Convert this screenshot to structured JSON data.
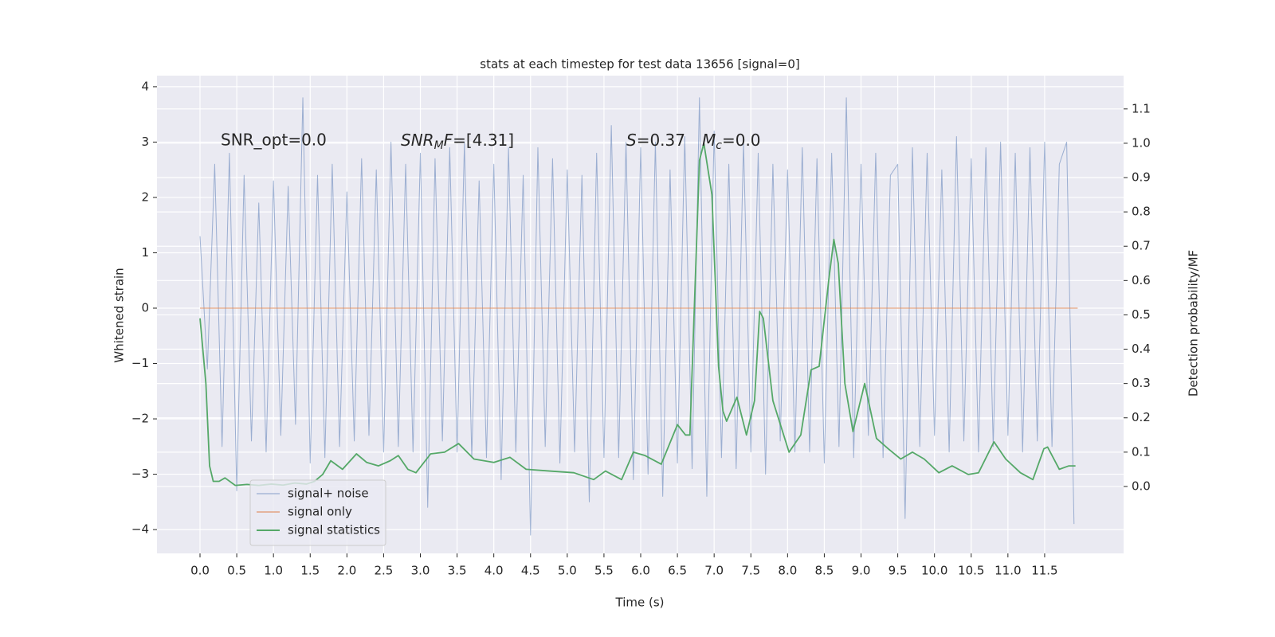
{
  "chart_data": {
    "type": "line",
    "title": "stats at each timestep for test data 13656 [signal=0]",
    "xlabel": "Time (s)",
    "ylabel": "Whitened strain",
    "y2label": "Detection probability/MF",
    "annotations": [
      "SNR_opt=0.0",
      [
        "SNR",
        "M",
        "F",
        "=[4.31]"
      ],
      [
        "S",
        "=0.37"
      ],
      [
        "M",
        "c",
        "=0.0"
      ]
    ],
    "xlim": [
      -0.586,
      12.575
    ],
    "ylim": [
      -4.43,
      4.2
    ],
    "y2lim": [
      -0.195,
      1.197
    ],
    "xticks": [
      {
        "value": 0,
        "label": "0.0"
      },
      0.5,
      {
        "value": 1,
        "label": "1.0"
      },
      1.5,
      {
        "value": 2,
        "label": "2.0"
      },
      2.5,
      {
        "value": 3,
        "label": "3.0"
      },
      3.5,
      {
        "value": 4,
        "label": "4.0"
      },
      4.5,
      {
        "value": 5,
        "label": "5.0"
      },
      5.5,
      {
        "value": 6,
        "label": "6.0"
      },
      6.5,
      {
        "value": 7,
        "label": "7.0"
      },
      7.5,
      {
        "value": 8,
        "label": "8.0"
      },
      8.5,
      {
        "value": 9,
        "label": "9.0"
      },
      9.5,
      {
        "value": 10,
        "label": "10.0"
      },
      10.5,
      {
        "value": 11,
        "label": "11.0"
      },
      11.5
    ],
    "yticks": [
      {
        "value": -4,
        "label": "−4"
      },
      {
        "value": -3,
        "label": "−3"
      },
      {
        "value": -2,
        "label": "−2"
      },
      {
        "value": -1,
        "label": "−1"
      },
      0,
      1,
      2,
      3,
      4
    ],
    "y2ticks": [
      {
        "value": 0,
        "label": "0.0"
      },
      0.1,
      0.2,
      0.3,
      0.4,
      0.5,
      0.6,
      0.7,
      0.8,
      0.9,
      {
        "value": 1,
        "label": "1.0"
      },
      1.1
    ],
    "grid": true,
    "legend": "lower left",
    "series": [
      {
        "name": "signal+ noise",
        "color": "#4c72b0",
        "x": [
          0.0,
          0.1,
          0.2,
          0.3,
          0.4,
          0.5,
          0.6,
          0.7,
          0.8,
          0.9,
          1.0,
          1.1,
          1.2,
          1.3,
          1.4,
          1.5,
          1.6,
          1.7,
          1.8,
          1.9,
          2.0,
          2.1,
          2.2,
          2.3,
          2.4,
          2.5,
          2.6,
          2.7,
          2.8,
          2.9,
          3.0,
          3.1,
          3.2,
          3.3,
          3.4,
          3.5,
          3.6,
          3.7,
          3.8,
          3.9,
          4.0,
          4.1,
          4.2,
          4.3,
          4.4,
          4.5,
          4.6,
          4.7,
          4.8,
          4.9,
          5.0,
          5.1,
          5.2,
          5.3,
          5.4,
          5.5,
          5.6,
          5.7,
          5.8,
          5.9,
          6.0,
          6.1,
          6.2,
          6.3,
          6.4,
          6.5,
          6.6,
          6.7,
          6.8,
          6.9,
          7.0,
          7.1,
          7.2,
          7.3,
          7.4,
          7.5,
          7.6,
          7.7,
          7.8,
          7.9,
          8.0,
          8.1,
          8.2,
          8.3,
          8.4,
          8.5,
          8.6,
          8.7,
          8.8,
          8.9,
          9.0,
          9.1,
          9.2,
          9.3,
          9.4,
          9.5,
          9.6,
          9.7,
          9.8,
          9.9,
          10.0,
          10.1,
          10.2,
          10.3,
          10.4,
          10.5,
          10.6,
          10.7,
          10.8,
          10.9,
          11.0,
          11.1,
          11.2,
          11.3,
          11.4,
          11.5,
          11.6,
          11.7,
          11.8,
          11.9
        ],
        "values": [
          1.3,
          -1.1,
          2.6,
          -2.5,
          2.8,
          -3.3,
          2.4,
          -2.4,
          1.9,
          -2.6,
          2.3,
          -2.3,
          2.2,
          -2.1,
          3.8,
          -2.8,
          2.4,
          -2.7,
          2.6,
          -2.5,
          2.1,
          -2.4,
          2.7,
          -2.3,
          2.5,
          -2.6,
          3.0,
          -2.5,
          2.6,
          -2.6,
          2.8,
          -3.6,
          2.7,
          -2.4,
          2.9,
          -2.6,
          3.0,
          -2.7,
          2.3,
          -2.7,
          2.6,
          -3.1,
          2.9,
          -2.6,
          2.4,
          -4.1,
          2.9,
          -2.5,
          2.7,
          -2.8,
          2.5,
          -2.6,
          2.4,
          -3.5,
          2.8,
          -2.7,
          3.3,
          -2.7,
          3.0,
          -3.1,
          2.9,
          -3.0,
          3.0,
          -3.4,
          2.5,
          -2.8,
          3.1,
          -2.9,
          3.8,
          -3.4,
          3.2,
          -2.7,
          2.6,
          -2.9,
          3.0,
          -2.6,
          2.8,
          -3.0,
          2.6,
          -2.4,
          2.5,
          -2.6,
          2.9,
          -2.6,
          2.7,
          -2.8,
          2.8,
          -2.5,
          3.8,
          -2.7,
          2.6,
          -2.3,
          2.8,
          -2.7,
          2.4,
          2.6,
          -3.8,
          2.9,
          -2.5,
          2.8,
          -2.3,
          2.5,
          -2.6,
          3.1,
          -2.4,
          2.7,
          -2.6,
          2.9,
          -2.5,
          3.0,
          -2.3,
          2.8,
          -2.6,
          2.9,
          -2.4,
          3.0,
          -2.5,
          2.6,
          3.0,
          -3.9
        ]
      },
      {
        "name": "signal only",
        "color": "#dd8452",
        "x": [
          0.0,
          11.95
        ],
        "values": [
          0,
          0
        ]
      },
      {
        "name": "signal statistics",
        "color": "#55a868",
        "axis": "y2",
        "x": [
          0.0,
          0.08,
          0.13,
          0.18,
          0.26,
          0.34,
          0.48,
          0.64,
          0.8,
          0.97,
          1.13,
          1.29,
          1.45,
          1.56,
          1.67,
          1.78,
          1.94,
          2.13,
          2.27,
          2.43,
          2.59,
          2.7,
          2.83,
          2.94,
          3.14,
          3.33,
          3.52,
          3.73,
          4.0,
          4.22,
          4.44,
          4.76,
          5.09,
          5.36,
          5.52,
          5.74,
          5.9,
          6.06,
          6.28,
          6.5,
          6.61,
          6.67,
          6.8,
          6.86,
          6.97,
          7.06,
          7.12,
          7.17,
          7.31,
          7.44,
          7.55,
          7.62,
          7.67,
          7.8,
          8.02,
          8.18,
          8.32,
          8.43,
          8.56,
          8.63,
          8.69,
          8.78,
          8.89,
          9.05,
          9.21,
          9.37,
          9.54,
          9.7,
          9.86,
          10.06,
          10.24,
          10.46,
          10.6,
          10.81,
          10.97,
          11.17,
          11.34,
          11.49,
          11.54,
          11.7,
          11.83,
          11.92
        ],
        "values": [
          0.49,
          0.3,
          0.06,
          0.015,
          0.015,
          0.025,
          0.003,
          0.006,
          0.003,
          0.007,
          0.004,
          0.01,
          0.007,
          0.015,
          0.035,
          0.075,
          0.05,
          0.095,
          0.07,
          0.06,
          0.075,
          0.09,
          0.05,
          0.04,
          0.095,
          0.1,
          0.125,
          0.08,
          0.07,
          0.085,
          0.05,
          0.045,
          0.04,
          0.02,
          0.045,
          0.02,
          0.1,
          0.09,
          0.065,
          0.18,
          0.15,
          0.15,
          0.95,
          1.0,
          0.85,
          0.35,
          0.22,
          0.19,
          0.26,
          0.15,
          0.25,
          0.51,
          0.49,
          0.25,
          0.1,
          0.15,
          0.34,
          0.35,
          0.6,
          0.72,
          0.65,
          0.3,
          0.16,
          0.3,
          0.14,
          0.11,
          0.08,
          0.1,
          0.08,
          0.04,
          0.06,
          0.035,
          0.04,
          0.13,
          0.08,
          0.04,
          0.02,
          0.11,
          0.115,
          0.05,
          0.06,
          0.06
        ]
      }
    ]
  }
}
